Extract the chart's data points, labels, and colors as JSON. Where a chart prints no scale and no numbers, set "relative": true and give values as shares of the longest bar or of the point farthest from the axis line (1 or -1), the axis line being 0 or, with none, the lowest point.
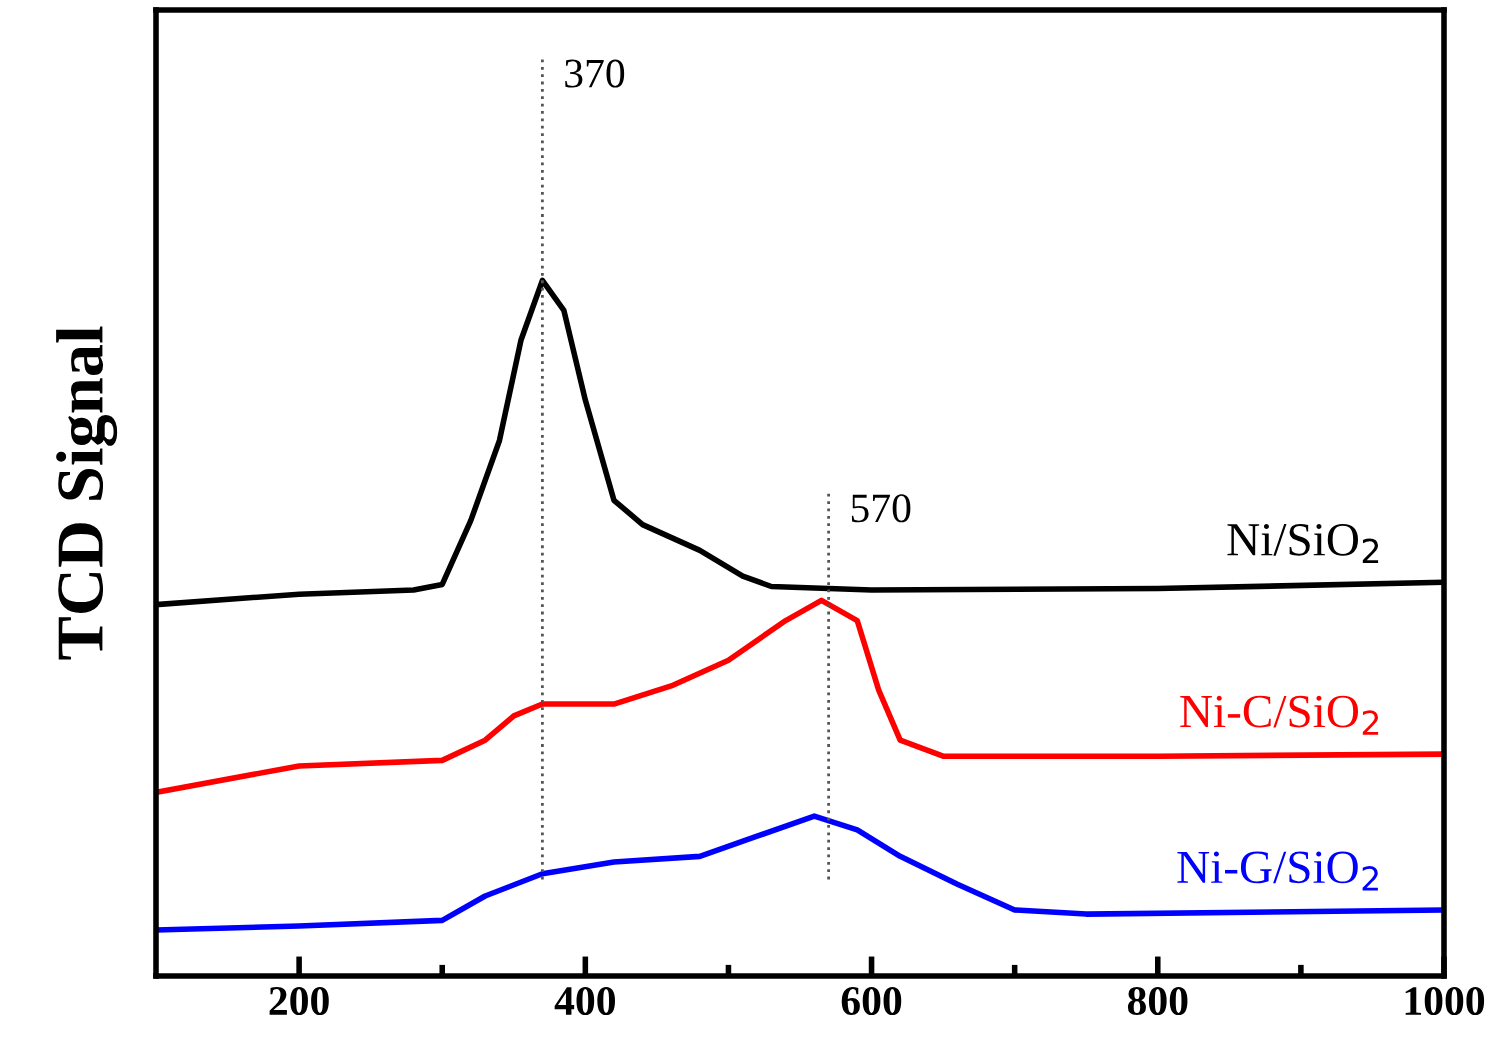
{
  "chart_data": {
    "type": "line",
    "ylabel": "TCD Signal",
    "relative": true,
    "legend": false,
    "grid": false,
    "line_style": "solid",
    "marker": "none",
    "xlim": [
      100,
      1000
    ],
    "xticks": [
      200,
      {
        "value": 300,
        "label": null
      },
      400,
      {
        "value": 500,
        "label": null
      },
      600,
      {
        "value": 700,
        "label": null
      },
      800,
      {
        "value": 900,
        "label": null
      },
      1000
    ],
    "series": [
      {
        "name": "Ni/SiO$_{2}$",
        "color": "#000000",
        "x": [
          100,
          200,
          280,
          300,
          320,
          340,
          355,
          370,
          385,
          400,
          420,
          440,
          480,
          510,
          530,
          600,
          800,
          1000
        ],
        "values": [
          0.534,
          0.549,
          0.555,
          0.563,
          0.655,
          0.77,
          0.914,
          1.0,
          0.957,
          0.828,
          0.684,
          0.649,
          0.612,
          0.575,
          0.56,
          0.555,
          0.557,
          0.566
        ]
      },
      {
        "name": "Ni-C/SiO$_{2}$",
        "color": "#ff0000",
        "x": [
          100,
          200,
          300,
          330,
          350,
          370,
          420,
          460,
          500,
          540,
          565,
          590,
          605,
          620,
          650,
          800,
          1000
        ],
        "values": [
          0.264,
          0.302,
          0.31,
          0.339,
          0.374,
          0.391,
          0.391,
          0.417,
          0.454,
          0.511,
          0.54,
          0.511,
          0.411,
          0.339,
          0.316,
          0.316,
          0.319
        ]
      },
      {
        "name": "Ni-G/SiO$_{2}$",
        "color": "#0000ff",
        "x": [
          100,
          200,
          300,
          330,
          370,
          420,
          480,
          520,
          560,
          590,
          620,
          660,
          700,
          750,
          1000
        ],
        "values": [
          0.066,
          0.072,
          0.08,
          0.115,
          0.147,
          0.164,
          0.172,
          0.201,
          0.23,
          0.21,
          0.172,
          0.132,
          0.095,
          0.089,
          0.095
        ]
      }
    ],
    "ref_lines": [
      {
        "axis": "x",
        "value": 370,
        "label": "370",
        "color": "#555555",
        "line_style": "dotted"
      },
      {
        "axis": "x",
        "value": 570,
        "label": "570",
        "color": "#555555",
        "line_style": "dotted"
      }
    ]
  }
}
